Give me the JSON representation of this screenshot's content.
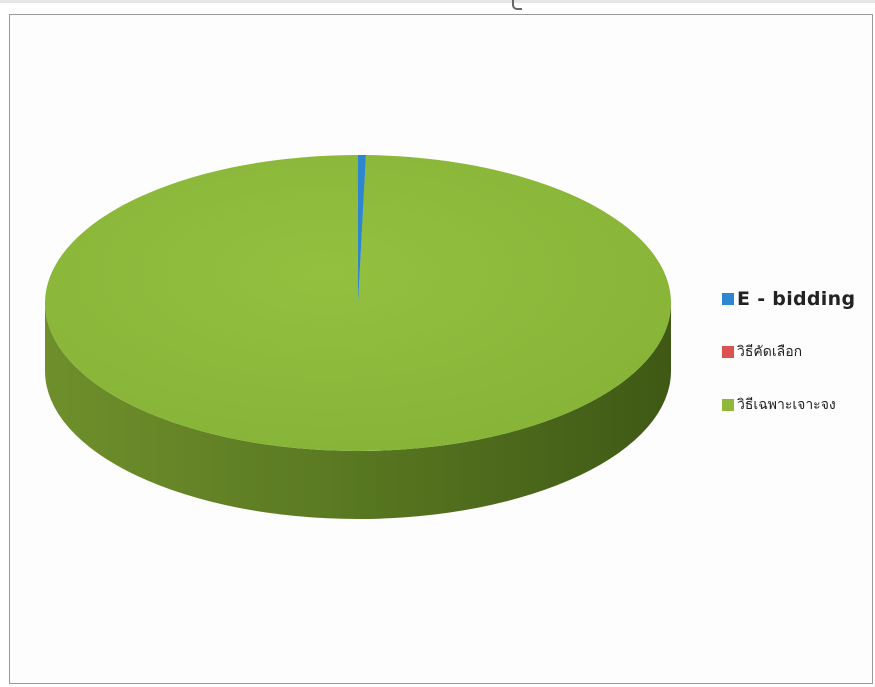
{
  "chart_data": {
    "type": "pie",
    "title": "",
    "categories": [
      "E - bidding",
      "วิธีคัดเลือก",
      "วิธีเฉพาะเจาะจง"
    ],
    "values": [
      0.4,
      0.0,
      99.6
    ],
    "colors": [
      "#2f86d0",
      "#d9534f",
      "#8fb83b"
    ],
    "three_d": true,
    "legend_placement": "right"
  },
  "legend": {
    "items": [
      {
        "label": "E - bidding",
        "color": "#2f86d0"
      },
      {
        "label": "วิธีคัดเลือก",
        "color": "#d9534f"
      },
      {
        "label": "วิธีเฉพาะเจาะจง",
        "color": "#8fb83b"
      }
    ]
  }
}
